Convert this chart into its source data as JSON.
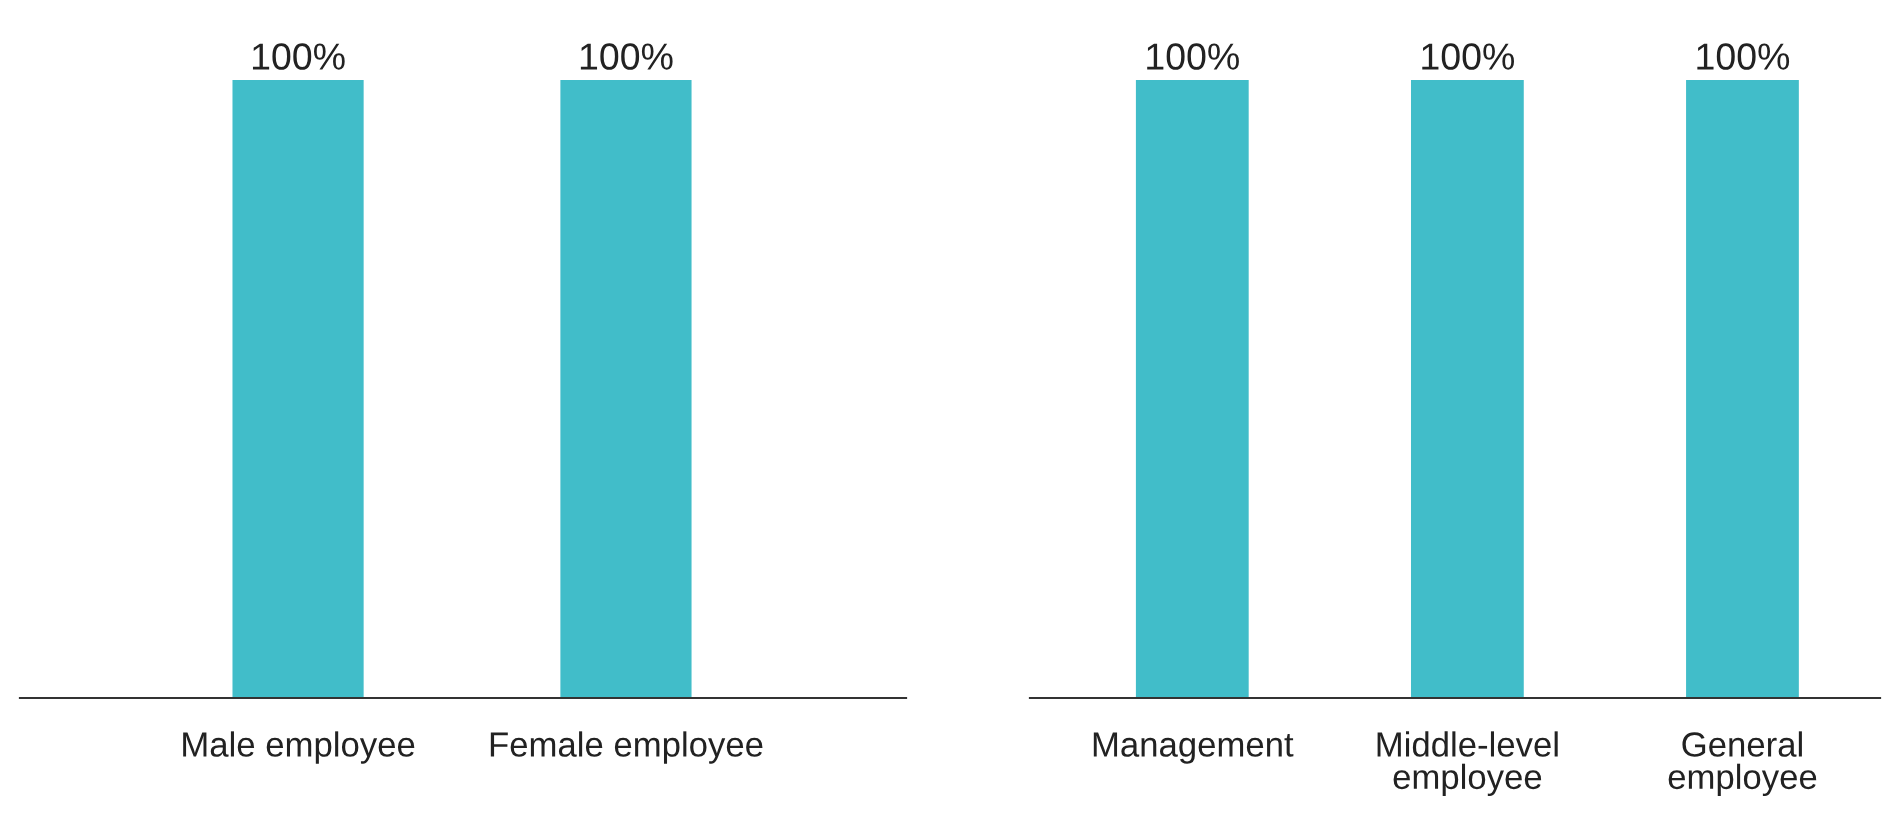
{
  "chart_data": [
    {
      "type": "bar",
      "categories": [
        "Male employee",
        "Female employee"
      ],
      "values": [
        100,
        100
      ],
      "value_labels": [
        "100%",
        "100%"
      ],
      "color": "#41bdc9",
      "grid": false,
      "legend": false
    },
    {
      "type": "bar",
      "categories": [
        "Management",
        "Middle-level\nemployee",
        "General\nemployee"
      ],
      "values": [
        100,
        100,
        100
      ],
      "value_labels": [
        "100%",
        "100%",
        "100%"
      ],
      "color": "#41bdc9",
      "grid": false,
      "legend": false
    }
  ]
}
